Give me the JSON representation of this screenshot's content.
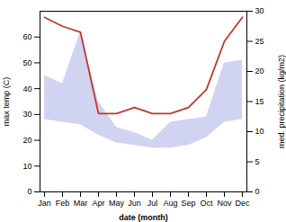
{
  "chart_data": {
    "type": "area",
    "categories": [
      "Jan",
      "Feb",
      "Mar",
      "Apr",
      "May",
      "Jun",
      "Jul",
      "Aug",
      "Sep",
      "Oct",
      "Nov",
      "Dec"
    ],
    "xlabel": "date (month)",
    "ylabel": "max temp (C)",
    "y2label": "med. precipitation (kg/m2)",
    "ylim": [
      0,
      70
    ],
    "yticks": [
      0,
      10,
      20,
      30,
      40,
      50,
      60
    ],
    "y2lim": [
      0,
      30
    ],
    "y2ticks": [
      0,
      5,
      10,
      15,
      20,
      25,
      30
    ],
    "grid": false,
    "series": [
      {
        "type": "area",
        "color": "#b0b8e8",
        "values": [
          45,
          42,
          62,
          35,
          25,
          23,
          20,
          27,
          28,
          29,
          50,
          51
        ],
        "low": [
          28,
          27,
          26,
          22,
          19,
          18,
          17,
          17,
          18,
          21,
          27,
          28
        ]
      },
      {
        "type": "line",
        "color": "#c0392b",
        "axis": "y2",
        "values": [
          29,
          27.5,
          26.5,
          13,
          13,
          14,
          13,
          13,
          14,
          17,
          25,
          29
        ]
      }
    ]
  }
}
